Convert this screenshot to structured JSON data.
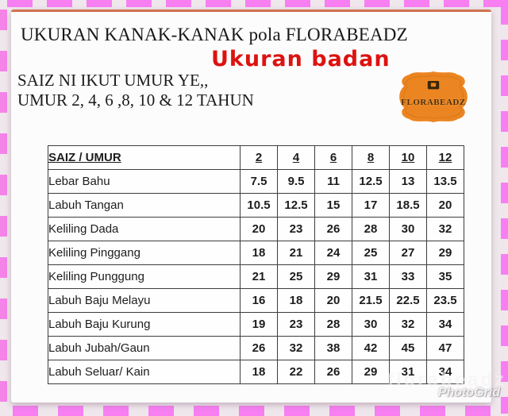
{
  "page": {
    "title": "UKURAN KANAK-KANAK pola FLORABEADZ",
    "annotation": "Ukuran badan",
    "subtitle_line1": "SAIZ NI IKUT UMUR YE,,",
    "subtitle_line2": "UMUR 2, 4, 6 ,8, 10 & 12 TAHUN"
  },
  "logo": {
    "text": "FLORABEADZ",
    "icon": "florabeadz-badge-icon"
  },
  "size_table": {
    "header": {
      "label": "SAIZ / UMUR",
      "ages": [
        "2",
        "4",
        "6",
        "8",
        "10",
        "12"
      ]
    },
    "rows": [
      {
        "label": "Lebar Bahu",
        "values": [
          "7.5",
          "9.5",
          "11",
          "12.5",
          "13",
          "13.5"
        ]
      },
      {
        "label": "Labuh Tangan",
        "values": [
          "10.5",
          "12.5",
          "15",
          "17",
          "18.5",
          "20"
        ]
      },
      {
        "label": "Keliling Dada",
        "values": [
          "20",
          "23",
          "26",
          "28",
          "30",
          "32"
        ]
      },
      {
        "label": "Keliling Pinggang",
        "values": [
          "18",
          "21",
          "24",
          "25",
          "27",
          "29"
        ]
      },
      {
        "label": "Keliling Punggung",
        "values": [
          "21",
          "25",
          "29",
          "31",
          "33",
          "35"
        ]
      },
      {
        "label": "Labuh Baju Melayu",
        "values": [
          "16",
          "18",
          "20",
          "21.5",
          "22.5",
          "23.5"
        ]
      },
      {
        "label": "Labuh Baju Kurung",
        "values": [
          "19",
          "23",
          "28",
          "30",
          "32",
          "34"
        ]
      },
      {
        "label": "Labuh Jubah/Gaun",
        "values": [
          "26",
          "32",
          "38",
          "42",
          "45",
          "47"
        ]
      },
      {
        "label": "Labuh Seluar/ Kain",
        "values": [
          "18",
          "22",
          "26",
          "29",
          "31",
          "34"
        ]
      }
    ]
  },
  "watermark": {
    "line1": "florabeadz",
    "line2": "PhotoGrid"
  },
  "colors": {
    "dash_pink": "#f77ff2",
    "doc_top_line": "#cf7350",
    "logo_orange": "#eb8522",
    "annotation_red": "#dc1310",
    "table_border": "#3d3d3d"
  }
}
